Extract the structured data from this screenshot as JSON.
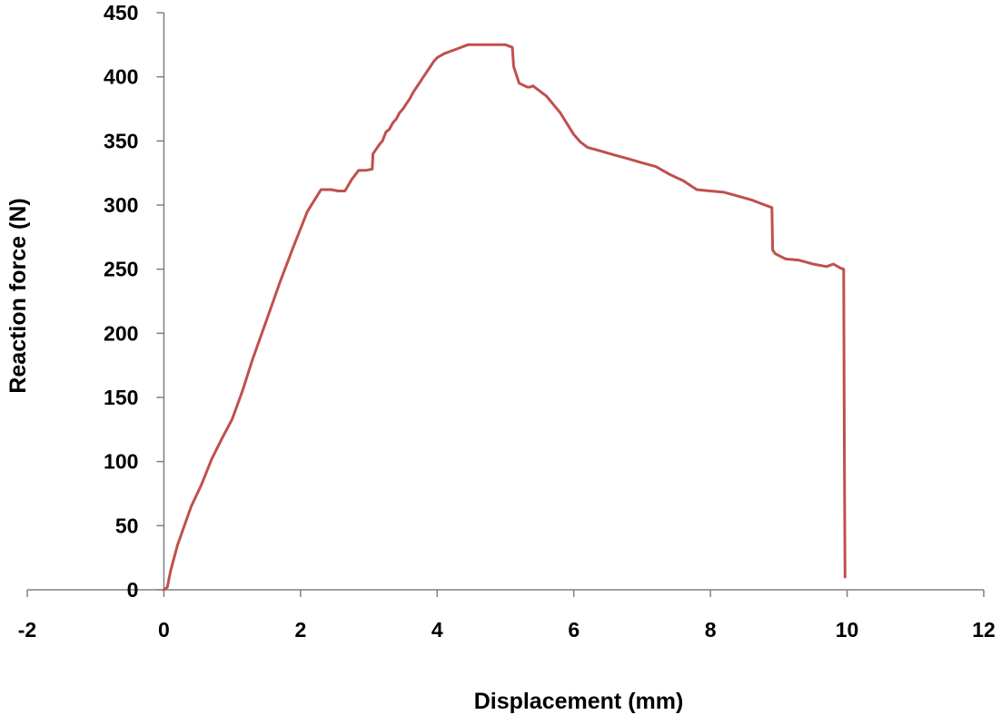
{
  "chart_data": {
    "type": "line",
    "title": "",
    "xlabel": "Displacement (mm)",
    "ylabel": "Reaction force (N)",
    "xlim": [
      -2,
      12
    ],
    "ylim": [
      0,
      450
    ],
    "x_ticks": [
      -2,
      0,
      2,
      4,
      6,
      8,
      10,
      12
    ],
    "y_ticks": [
      0,
      50,
      100,
      150,
      200,
      250,
      300,
      350,
      400,
      450
    ],
    "x_tick_labels": [
      "-2",
      "0",
      "2",
      "4",
      "6",
      "8",
      "10",
      "12"
    ],
    "y_tick_labels": [
      "0",
      "50",
      "100",
      "150",
      "200",
      "250",
      "300",
      "350",
      "400",
      "450"
    ],
    "grid": false,
    "legend": "none",
    "series": [
      {
        "color": "#C0504D",
        "x": [
          0.0,
          0.05,
          0.1,
          0.2,
          0.3,
          0.4,
          0.55,
          0.7,
          0.85,
          1.0,
          1.15,
          1.3,
          1.5,
          1.7,
          1.9,
          2.1,
          2.3,
          2.45,
          2.55,
          2.65,
          2.75,
          2.85,
          2.95,
          3.05,
          3.06,
          3.1,
          3.15,
          3.2,
          3.25,
          3.3,
          3.35,
          3.4,
          3.45,
          3.5,
          3.55,
          3.6,
          3.65,
          3.7,
          3.75,
          3.8,
          3.85,
          3.9,
          3.95,
          4.0,
          4.1,
          4.2,
          4.3,
          4.45,
          4.6,
          4.75,
          4.9,
          5.0,
          5.1,
          5.12,
          5.2,
          5.28,
          5.32,
          5.36,
          5.4,
          5.6,
          5.8,
          6.0,
          6.1,
          6.2,
          6.4,
          6.6,
          6.8,
          7.0,
          7.2,
          7.4,
          7.6,
          7.8,
          8.0,
          8.2,
          8.4,
          8.6,
          8.8,
          8.9,
          8.91,
          8.95,
          9.1,
          9.3,
          9.5,
          9.7,
          9.8,
          9.9,
          9.95,
          9.96,
          9.97
        ],
        "y": [
          0,
          2,
          15,
          35,
          50,
          65,
          82,
          102,
          118,
          133,
          155,
          180,
          210,
          240,
          268,
          295,
          312,
          312,
          311,
          311,
          320,
          327,
          327,
          328,
          340,
          343,
          347,
          350,
          357,
          359,
          364,
          367,
          372,
          375,
          379,
          383,
          388,
          392,
          396,
          400,
          404,
          408,
          412,
          415,
          418,
          420,
          422,
          425,
          425,
          425,
          425,
          425,
          423,
          408,
          395,
          393,
          392,
          392,
          393,
          385,
          372,
          355,
          349,
          345,
          342,
          339,
          336,
          333,
          330,
          324,
          319,
          312,
          311,
          310,
          307,
          304,
          300,
          298,
          265,
          262,
          258,
          257,
          254,
          252,
          254,
          251,
          250,
          100,
          10
        ]
      }
    ]
  }
}
